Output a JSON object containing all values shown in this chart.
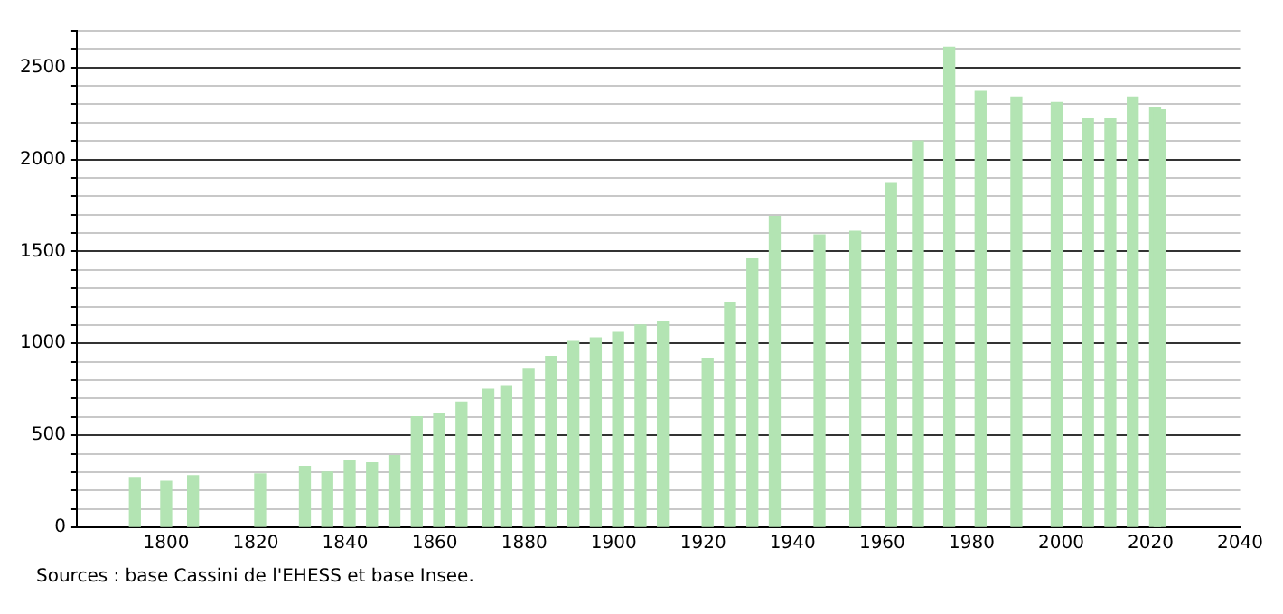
{
  "chart_data": {
    "type": "bar",
    "x": [
      1793,
      1800,
      1806,
      1821,
      1831,
      1836,
      1841,
      1846,
      1851,
      1856,
      1861,
      1866,
      1872,
      1876,
      1881,
      1886,
      1891,
      1896,
      1901,
      1906,
      1911,
      1921,
      1926,
      1931,
      1936,
      1946,
      1954,
      1962,
      1968,
      1975,
      1982,
      1990,
      1999,
      2006,
      2011,
      2016,
      2021,
      2022
    ],
    "values": [
      270,
      250,
      280,
      290,
      330,
      300,
      360,
      350,
      390,
      600,
      620,
      680,
      750,
      770,
      860,
      930,
      1010,
      1030,
      1060,
      1100,
      1120,
      920,
      1220,
      1460,
      1690,
      1590,
      1610,
      1870,
      2100,
      2610,
      2370,
      2340,
      2310,
      2220,
      2220,
      2340,
      2280,
      2270
    ],
    "color": "#b3e4b3",
    "xlim": [
      1780,
      2040
    ],
    "xticks": [
      1800,
      1820,
      1840,
      1860,
      1880,
      1900,
      1920,
      1940,
      1960,
      1980,
      2000,
      2020,
      2040
    ],
    "ylim": [
      0,
      2700
    ],
    "yticks": [
      0,
      {
        "value": 100,
        "label": null
      },
      {
        "value": 200,
        "label": null
      },
      {
        "value": 300,
        "label": null
      },
      {
        "value": 400,
        "label": null
      },
      500,
      {
        "value": 600,
        "label": null
      },
      {
        "value": 700,
        "label": null
      },
      {
        "value": 800,
        "label": null
      },
      {
        "value": 900,
        "label": null
      },
      1000,
      {
        "value": 1100,
        "label": null
      },
      {
        "value": 1200,
        "label": null
      },
      {
        "value": 1300,
        "label": null
      },
      {
        "value": 1400,
        "label": null
      },
      1500,
      {
        "value": 1600,
        "label": null
      },
      {
        "value": 1700,
        "label": null
      },
      {
        "value": 1800,
        "label": null
      },
      {
        "value": 1900,
        "label": null
      },
      2000,
      {
        "value": 2100,
        "label": null
      },
      {
        "value": 2200,
        "label": null
      },
      {
        "value": 2300,
        "label": null
      },
      {
        "value": 2400,
        "label": null
      },
      2500,
      {
        "value": 2600,
        "label": null
      },
      {
        "value": 2700,
        "label": null
      }
    ],
    "grid": "y",
    "annotations": [
      "Sources : base Cassini de l'EHESS et base Insee."
    ]
  }
}
